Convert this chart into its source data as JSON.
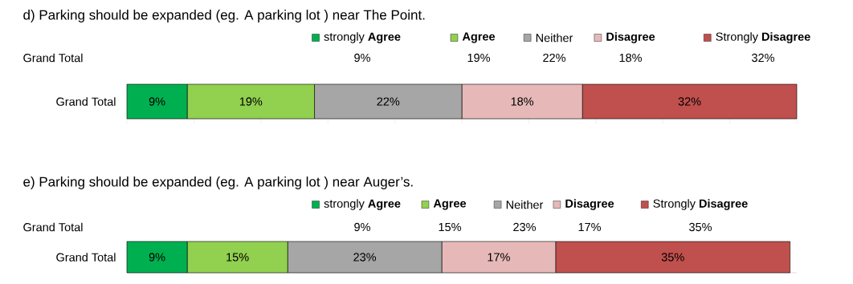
{
  "chart_data": [
    {
      "type": "bar",
      "orientation": "horizontal",
      "stacked": true,
      "title": "d) Parking should be expanded (eg. A parking lot ) near The Point.",
      "categories": [
        "Grand Total"
      ],
      "legend": "top",
      "xlim": [
        0,
        100
      ],
      "xticks": [
        {
          "value": 0,
          "label": null
        },
        {
          "value": 10,
          "label": null
        },
        {
          "value": 20,
          "label": null
        },
        {
          "value": 30,
          "label": null
        },
        {
          "value": 40,
          "label": null
        },
        {
          "value": 50,
          "label": null
        },
        {
          "value": 60,
          "label": null
        },
        {
          "value": 70,
          "label": null
        },
        {
          "value": 80,
          "label": null
        },
        {
          "value": 90,
          "label": null
        },
        {
          "value": 100,
          "label": null
        }
      ],
      "tick_labels": "y",
      "series": [
        {
          "name": "strongly **Agree**",
          "color": "#00b050",
          "values": [
            9
          ],
          "value_labels": [
            "9%"
          ]
        },
        {
          "name": "**Agree**",
          "color": "#92d050",
          "values": [
            19
          ],
          "value_labels": [
            "19%"
          ]
        },
        {
          "name": "Neither",
          "color": "#a6a6a6",
          "values": [
            22
          ],
          "value_labels": [
            "22%"
          ]
        },
        {
          "name": "**Disagree**",
          "color": "#e6b9b8",
          "values": [
            18
          ],
          "value_labels": [
            "18%"
          ]
        },
        {
          "name": "Strongly **Disagree**",
          "color": "#c0504d",
          "values": [
            32
          ],
          "value_labels": [
            "32%"
          ]
        }
      ]
    },
    {
      "type": "bar",
      "orientation": "horizontal",
      "stacked": true,
      "title": "e) Parking should be expanded (eg. A parking lot ) near Auger’s.",
      "categories": [
        "Grand Total"
      ],
      "xlim": [
        0,
        100
      ],
      "tick_labels": "y",
      "legend": "top",
      "series": [
        {
          "name": "strongly **Agree**",
          "color": "#00b050",
          "values": [
            9
          ],
          "value_labels": [
            "9%"
          ]
        },
        {
          "name": "**Agree**",
          "color": "#92d050",
          "values": [
            15
          ],
          "value_labels": [
            "15%"
          ]
        },
        {
          "name": "Neither",
          "color": "#a6a6a6",
          "values": [
            23
          ],
          "value_labels": [
            "23%"
          ]
        },
        {
          "name": "**Disagree**",
          "color": "#e6b9b8",
          "values": [
            17
          ],
          "value_labels": [
            "17%"
          ]
        },
        {
          "name": "Strongly **Disagree**",
          "color": "#c0504d",
          "values": [
            35
          ],
          "value_labels": [
            "35%"
          ]
        }
      ]
    }
  ]
}
